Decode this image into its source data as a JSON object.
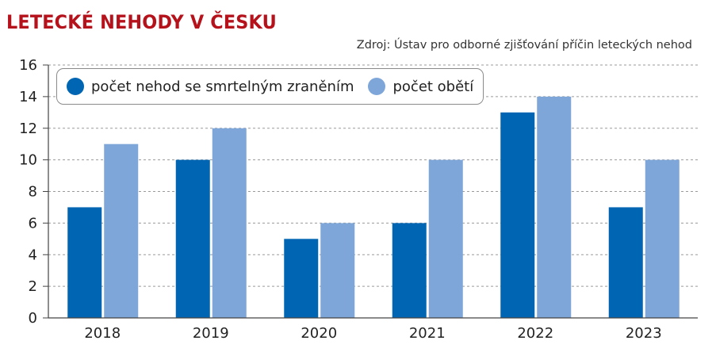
{
  "header": {
    "title": "LETECKÉ NEHODY V ČESKU",
    "source": "Zdroj: Ústav pro odborné zjišťování příčin leteckých nehod"
  },
  "colors": {
    "title": "#b5121b",
    "series_dark": "#0066b3",
    "series_light": "#7ea6d9",
    "grid": "#9a9a9a"
  },
  "chart_data": {
    "type": "bar",
    "title": "LETECKÉ NEHODY V ČESKU",
    "xlabel": "",
    "ylabel": "",
    "categories": [
      "2018",
      "2019",
      "2020",
      "2021",
      "2022",
      "2023"
    ],
    "series": [
      {
        "name": "počet nehod se smrtelným zraněním",
        "color": "#0066b3",
        "values": [
          7,
          10,
          5,
          6,
          13,
          7
        ]
      },
      {
        "name": "počet obětí",
        "color": "#7ea6d9",
        "values": [
          11,
          12,
          6,
          10,
          14,
          10
        ]
      }
    ],
    "ylim": [
      0,
      16
    ],
    "yticks": [
      "0",
      "2",
      "4",
      "6",
      "8",
      "10",
      "12",
      "14",
      "16"
    ],
    "grid": "horizontal dashed",
    "legend_position": "top-left"
  }
}
